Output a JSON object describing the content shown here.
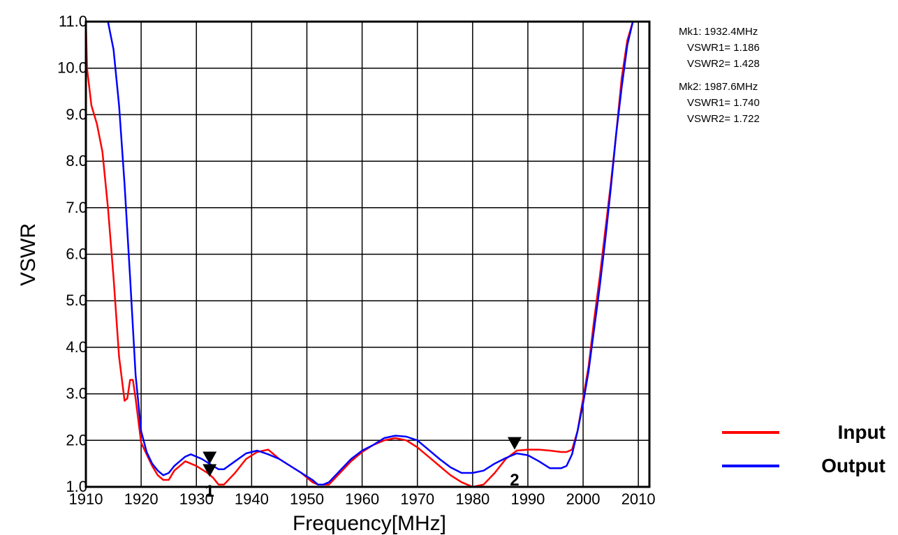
{
  "chart_data": {
    "type": "line",
    "title": "",
    "xlabel": "Frequency[MHz]",
    "ylabel": "VSWR",
    "xlim": [
      1910,
      2012
    ],
    "ylim": [
      1.0,
      11.0
    ],
    "x_ticks": [
      "1910",
      "1920",
      "1930",
      "1940",
      "1950",
      "1960",
      "1970",
      "1980",
      "1990",
      "2000",
      "2010"
    ],
    "y_ticks": [
      "1.0",
      "2.0",
      "3.0",
      "4.0",
      "5.0",
      "6.0",
      "7.0",
      "8.0",
      "9.0",
      "10.0",
      "11.0"
    ],
    "grid": true,
    "legend_position": "bottom-right",
    "series": [
      {
        "name": "Input",
        "color": "#ff0000",
        "points": [
          [
            1910,
            11.0
          ],
          [
            1910.2,
            10.0
          ],
          [
            1911,
            9.2
          ],
          [
            1912,
            8.8
          ],
          [
            1913,
            8.2
          ],
          [
            1914,
            7.0
          ],
          [
            1915,
            5.5
          ],
          [
            1916,
            3.8
          ],
          [
            1917,
            2.85
          ],
          [
            1917.5,
            2.9
          ],
          [
            1918,
            3.3
          ],
          [
            1918.5,
            3.3
          ],
          [
            1919,
            2.9
          ],
          [
            1920,
            1.95
          ],
          [
            1921,
            1.7
          ],
          [
            1922,
            1.45
          ],
          [
            1923,
            1.25
          ],
          [
            1924,
            1.15
          ],
          [
            1925,
            1.15
          ],
          [
            1926,
            1.35
          ],
          [
            1928,
            1.55
          ],
          [
            1930,
            1.45
          ],
          [
            1932,
            1.3
          ],
          [
            1933,
            1.2
          ],
          [
            1934,
            1.05
          ],
          [
            1935,
            1.05
          ],
          [
            1937,
            1.3
          ],
          [
            1939,
            1.6
          ],
          [
            1941,
            1.75
          ],
          [
            1943,
            1.8
          ],
          [
            1945,
            1.6
          ],
          [
            1947,
            1.45
          ],
          [
            1949,
            1.3
          ],
          [
            1951,
            1.1
          ],
          [
            1952,
            1.05
          ],
          [
            1954,
            1.05
          ],
          [
            1956,
            1.3
          ],
          [
            1958,
            1.55
          ],
          [
            1960,
            1.75
          ],
          [
            1962,
            1.9
          ],
          [
            1964,
            2.0
          ],
          [
            1966,
            2.05
          ],
          [
            1968,
            2.0
          ],
          [
            1970,
            1.85
          ],
          [
            1972,
            1.65
          ],
          [
            1974,
            1.45
          ],
          [
            1976,
            1.25
          ],
          [
            1978,
            1.1
          ],
          [
            1980,
            1.0
          ],
          [
            1982,
            1.05
          ],
          [
            1984,
            1.3
          ],
          [
            1986,
            1.6
          ],
          [
            1988,
            1.78
          ],
          [
            1990,
            1.8
          ],
          [
            1992,
            1.8
          ],
          [
            1994,
            1.78
          ],
          [
            1996,
            1.75
          ],
          [
            1997,
            1.75
          ],
          [
            1998,
            1.8
          ],
          [
            1999,
            2.2
          ],
          [
            2000,
            2.9
          ],
          [
            2001,
            3.6
          ],
          [
            2002,
            4.6
          ],
          [
            2003,
            5.5
          ],
          [
            2004,
            6.5
          ],
          [
            2005,
            7.5
          ],
          [
            2006,
            8.6
          ],
          [
            2007,
            9.8
          ],
          [
            2008,
            10.6
          ],
          [
            2009,
            11.0
          ]
        ]
      },
      {
        "name": "Output",
        "color": "#0000ff",
        "points": [
          [
            1914,
            11.0
          ],
          [
            1915,
            10.4
          ],
          [
            1916,
            9.2
          ],
          [
            1917,
            7.5
          ],
          [
            1918,
            5.5
          ],
          [
            1919,
            3.4
          ],
          [
            1920,
            2.2
          ],
          [
            1921,
            1.75
          ],
          [
            1922,
            1.5
          ],
          [
            1923,
            1.35
          ],
          [
            1924,
            1.25
          ],
          [
            1925,
            1.3
          ],
          [
            1926,
            1.45
          ],
          [
            1928,
            1.65
          ],
          [
            1929,
            1.7
          ],
          [
            1931,
            1.6
          ],
          [
            1933,
            1.45
          ],
          [
            1934,
            1.38
          ],
          [
            1935,
            1.38
          ],
          [
            1937,
            1.55
          ],
          [
            1939,
            1.72
          ],
          [
            1941,
            1.78
          ],
          [
            1943,
            1.7
          ],
          [
            1945,
            1.6
          ],
          [
            1947,
            1.45
          ],
          [
            1949,
            1.3
          ],
          [
            1951,
            1.15
          ],
          [
            1952,
            1.05
          ],
          [
            1953,
            1.05
          ],
          [
            1954,
            1.1
          ],
          [
            1956,
            1.35
          ],
          [
            1958,
            1.6
          ],
          [
            1960,
            1.78
          ],
          [
            1962,
            1.9
          ],
          [
            1964,
            2.05
          ],
          [
            1966,
            2.1
          ],
          [
            1968,
            2.08
          ],
          [
            1970,
            2.0
          ],
          [
            1972,
            1.8
          ],
          [
            1974,
            1.6
          ],
          [
            1976,
            1.42
          ],
          [
            1978,
            1.3
          ],
          [
            1980,
            1.3
          ],
          [
            1982,
            1.35
          ],
          [
            1984,
            1.5
          ],
          [
            1986,
            1.62
          ],
          [
            1988,
            1.72
          ],
          [
            1990,
            1.68
          ],
          [
            1992,
            1.55
          ],
          [
            1994,
            1.4
          ],
          [
            1996,
            1.4
          ],
          [
            1997,
            1.45
          ],
          [
            1998,
            1.7
          ],
          [
            1999,
            2.2
          ],
          [
            2000,
            2.8
          ],
          [
            2001,
            3.5
          ],
          [
            2002,
            4.4
          ],
          [
            2003,
            5.3
          ],
          [
            2004,
            6.3
          ],
          [
            2005,
            7.4
          ],
          [
            2006,
            8.6
          ],
          [
            2007,
            9.6
          ],
          [
            2008,
            10.5
          ],
          [
            2009,
            11.0
          ],
          [
            2010,
            11.0
          ]
        ]
      }
    ],
    "markers": [
      {
        "label": "1",
        "x": 1932.4,
        "y": 1.428
      },
      {
        "label": "2",
        "x": 1987.6,
        "y": 1.74
      }
    ]
  },
  "marker_readouts": [
    {
      "head": "Mk1: 1932.4MHz",
      "vswr1": "VSWR1= 1.186",
      "vswr2": "VSWR2= 1.428"
    },
    {
      "head": "Mk2: 1987.6MHz",
      "vswr1": "VSWR1= 1.740",
      "vswr2": "VSWR2= 1.722"
    }
  ],
  "legend": {
    "input_label": "Input",
    "input_color": "#ff0000",
    "output_label": "Output",
    "output_color": "#0000ff"
  }
}
